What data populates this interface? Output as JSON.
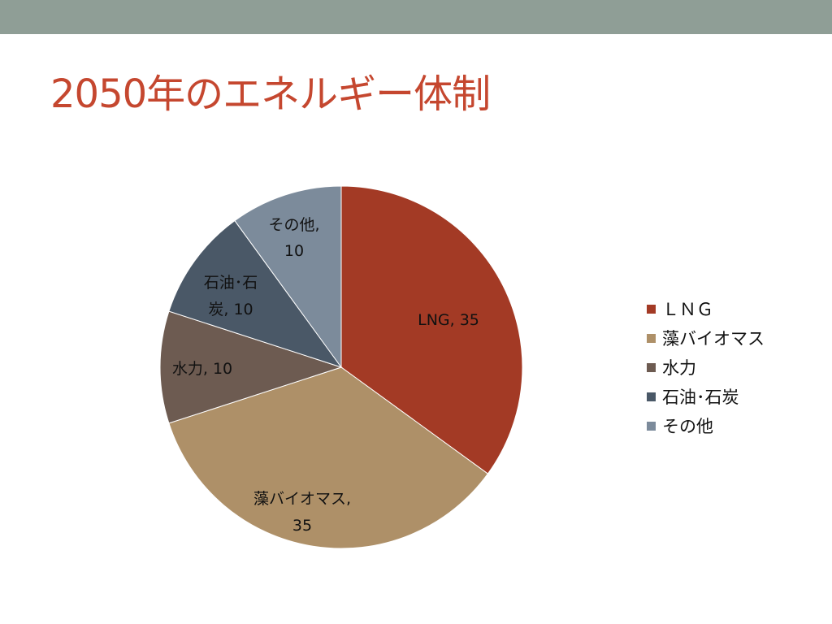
{
  "slide": {
    "title": "2050年のエネルギー体制"
  },
  "chart_data": {
    "type": "pie",
    "title": "",
    "categories": [
      "ＬＮＧ",
      "藻バイオマス",
      "水力",
      "石油･石炭",
      "その他"
    ],
    "slice_labels": [
      "LNG, 35",
      "藻バイオマス, 35",
      "水力, 10",
      "石油･石炭, 10",
      "その他, 10"
    ],
    "values": [
      35,
      35,
      10,
      10,
      10
    ],
    "colors": [
      "#a33a25",
      "#ae9068",
      "#6d5b51",
      "#4a5867",
      "#7c8b9b"
    ],
    "legend_position": "right",
    "start_angle": "12 o'clock, clockwise"
  }
}
